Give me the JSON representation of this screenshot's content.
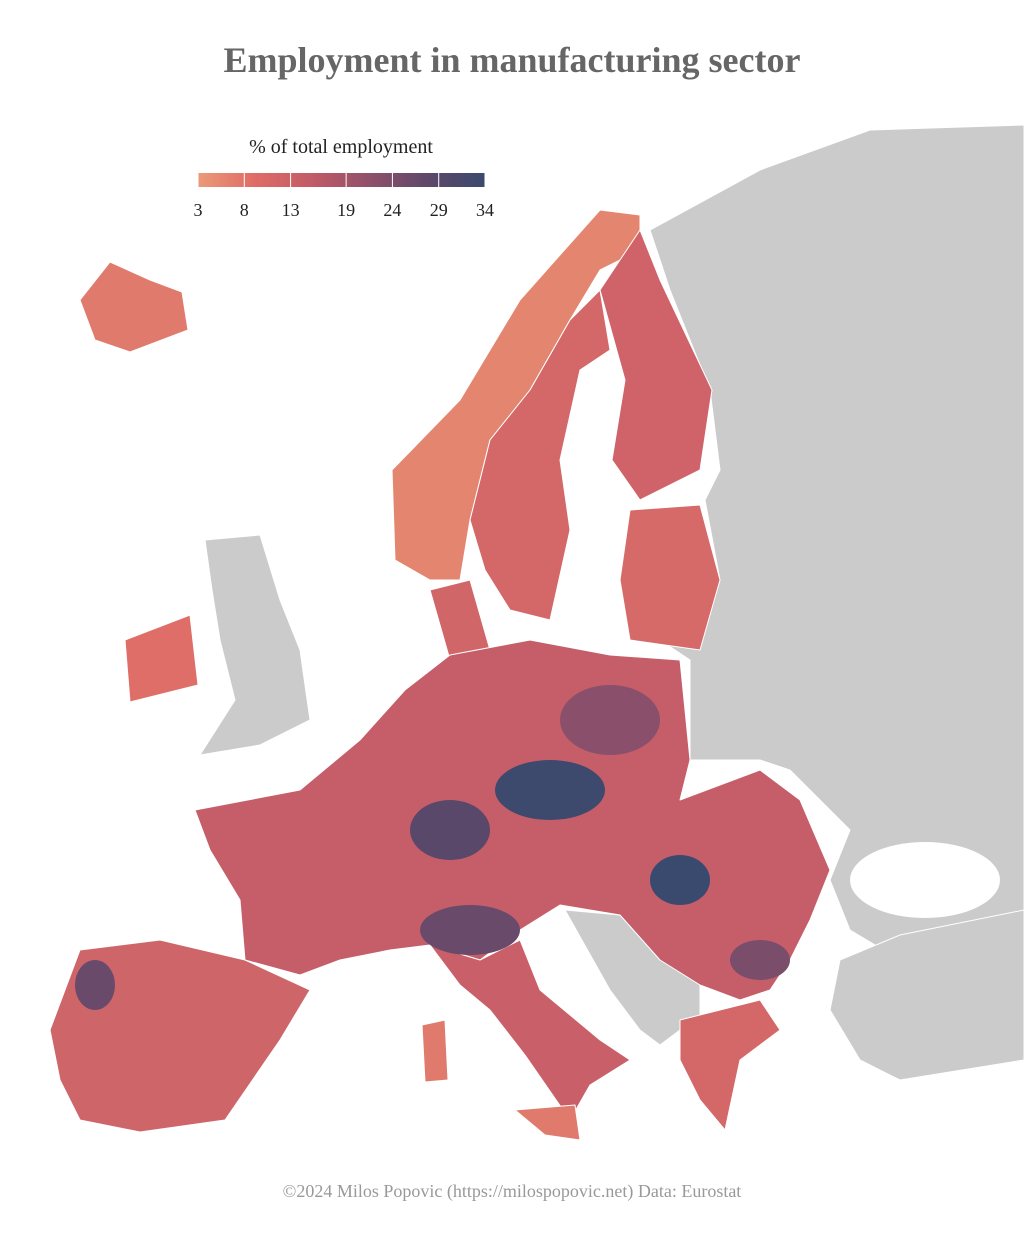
{
  "title": "Employment in manufacturing sector",
  "legend": {
    "title": "% of total employment",
    "ticks": [
      3,
      8,
      13,
      19,
      24,
      29,
      34
    ],
    "colors": [
      "#eb9a78",
      "#df6b66",
      "#c15b68",
      "#8f4f6a",
      "#5f486a",
      "#3a4a6e"
    ]
  },
  "caption": "©2024 Milos Popovic (https://milospopovic.net) Data: Eurostat"
}
